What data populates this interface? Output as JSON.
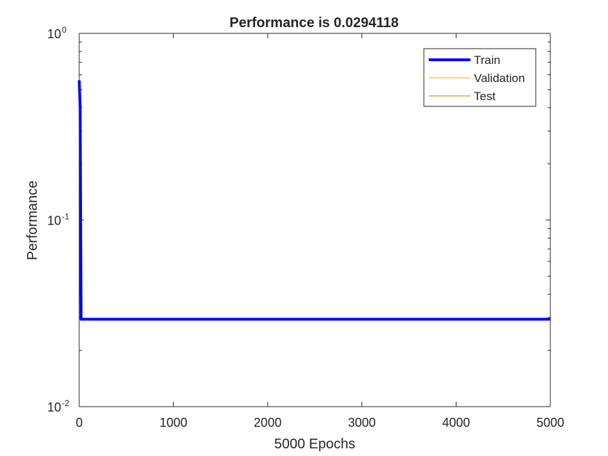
{
  "chart_data": {
    "type": "line",
    "title": "Performance is 0.0294118",
    "xlabel": "5000 Epochs",
    "ylabel": "Performance",
    "xlim": [
      0,
      5000
    ],
    "ylim": [
      0.01,
      1
    ],
    "yscale": "log",
    "xticks": [
      0,
      1000,
      2000,
      3000,
      4000,
      5000
    ],
    "xtick_labels": [
      "0",
      "1000",
      "2000",
      "3000",
      "4000",
      "5000"
    ],
    "yticks": [
      {
        "value": 0.01,
        "base": "10",
        "exp": "-2"
      },
      {
        "value": 0.1,
        "base": "10",
        "exp": "-1"
      },
      {
        "value": 1,
        "base": "10",
        "exp": "0"
      }
    ],
    "grid": false,
    "legend": "top-right",
    "series": [
      {
        "name": "Train",
        "color": "#0000ff",
        "x": [
          0,
          10,
          20,
          5000
        ],
        "y": [
          0.56,
          0.4,
          0.0294118,
          0.0294118
        ]
      },
      {
        "name": "Validation",
        "color": "#ffaa00",
        "x": [],
        "y": []
      },
      {
        "name": "Test",
        "color": "#c08000",
        "x": [],
        "y": []
      }
    ]
  }
}
